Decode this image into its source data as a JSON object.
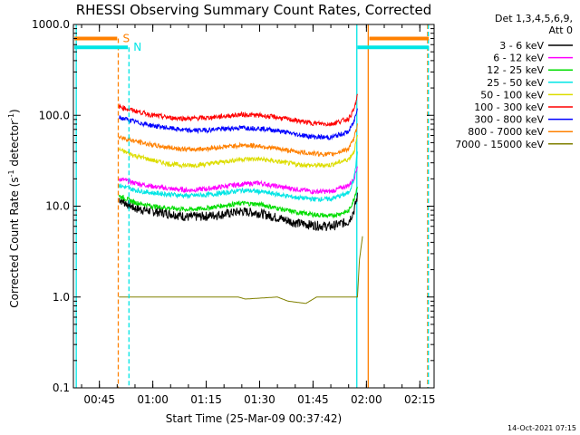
{
  "chart_data": {
    "type": "line",
    "title": "RHESSI Observing Summary Count Rates, Corrected",
    "ylabel": "Corrected Count Rate (s⁻¹ detector⁻¹)",
    "ylabel_main": "Corrected Count Rate (s",
    "ylabel_sup1": "-1",
    "ylabel_mid": " detector",
    "ylabel_sup2": "-1",
    "ylabel_end": ")",
    "xlabel": "Start Time (25-Mar-09 00:37:42)",
    "yscale": "log",
    "ylim": [
      0.1,
      1000.0
    ],
    "xlim_minutes": [
      37.7,
      139.0
    ],
    "yticks": [
      {
        "value": 0.1,
        "label": "0.1"
      },
      {
        "value": 1.0,
        "label": "1.0"
      },
      {
        "value": 10.0,
        "label": "10.0"
      },
      {
        "value": 100.0,
        "label": "100.0"
      },
      {
        "value": 1000.0,
        "label": "1000.0"
      }
    ],
    "xticks": [
      {
        "value": 45,
        "label": "00:45"
      },
      {
        "value": 60,
        "label": "01:00"
      },
      {
        "value": 75,
        "label": "01:15"
      },
      {
        "value": 90,
        "label": "01:30"
      },
      {
        "value": 105,
        "label": "01:45"
      },
      {
        "value": 120,
        "label": "02:00"
      },
      {
        "value": 135,
        "label": "02:15"
      }
    ],
    "legend_header": [
      "Det 1,3,4,5,6,9,",
      "Att 0"
    ],
    "legend_placement": "right",
    "series": [
      {
        "name": "3 - 6 keV",
        "color": "#000000",
        "x": [
          50.5,
          55,
          60,
          65,
          70,
          75,
          80,
          85,
          90,
          95,
          100,
          105,
          110,
          115,
          116.5,
          117.5
        ],
        "y": [
          12,
          9.5,
          8.8,
          8.3,
          7.6,
          7.8,
          8.2,
          8.8,
          8.4,
          7.5,
          6.6,
          6.2,
          6.0,
          6.8,
          9,
          13
        ]
      },
      {
        "name": "6 - 12 keV",
        "color": "#ff00ff",
        "x": [
          50.5,
          55,
          60,
          65,
          70,
          75,
          80,
          85,
          90,
          95,
          100,
          105,
          110,
          115,
          116.5,
          117.5
        ],
        "y": [
          20,
          18,
          16.5,
          15.5,
          15,
          15.5,
          16.5,
          17.5,
          18,
          16.5,
          15.5,
          14.5,
          14.5,
          17,
          20,
          28
        ]
      },
      {
        "name": "12 - 25 keV",
        "color": "#00dd00",
        "x": [
          50.5,
          55,
          60,
          65,
          70,
          75,
          80,
          85,
          90,
          95,
          100,
          105,
          110,
          115,
          116.5,
          117.5
        ],
        "y": [
          13,
          11,
          10,
          9.5,
          9.2,
          9.5,
          10.2,
          10.8,
          10.5,
          9.5,
          8.6,
          8.1,
          7.8,
          8.8,
          12,
          17
        ]
      },
      {
        "name": "25 - 50 keV",
        "color": "#00e5e5",
        "x": [
          50.5,
          55,
          60,
          65,
          70,
          75,
          80,
          85,
          90,
          95,
          100,
          105,
          110,
          115,
          116.5,
          117.5
        ],
        "y": [
          17,
          15,
          14,
          13.5,
          13,
          13.3,
          14,
          15,
          14.5,
          13.5,
          12.5,
          12,
          12,
          14,
          20,
          40
        ]
      },
      {
        "name": "50 - 100 keV",
        "color": "#dddd00",
        "x": [
          50.5,
          55,
          60,
          65,
          70,
          75,
          80,
          85,
          90,
          95,
          100,
          105,
          110,
          115,
          116.5,
          117.5
        ],
        "y": [
          42,
          36,
          32,
          29,
          28,
          29,
          31,
          33,
          33,
          31,
          29,
          28,
          28.5,
          33,
          40,
          60
        ]
      },
      {
        "name": "100 - 300 keV",
        "color": "#ff0000",
        "x": [
          50.5,
          55,
          60,
          65,
          70,
          75,
          80,
          85,
          90,
          95,
          100,
          105,
          110,
          115,
          116.5,
          117.5
        ],
        "y": [
          125,
          112,
          100,
          94,
          92,
          94,
          98,
          102,
          100,
          95,
          88,
          82,
          80,
          92,
          115,
          165
        ]
      },
      {
        "name": "300 - 800 keV",
        "color": "#0000ff",
        "x": [
          50.5,
          55,
          60,
          65,
          70,
          75,
          80,
          85,
          90,
          95,
          100,
          105,
          110,
          115,
          116.5,
          117.5
        ],
        "y": [
          95,
          85,
          77,
          72,
          68,
          69,
          71,
          73,
          72,
          68,
          62,
          58,
          57,
          66,
          85,
          125
        ]
      },
      {
        "name": "800 - 7000 keV",
        "color": "#ff8000",
        "x": [
          50.5,
          55,
          60,
          65,
          70,
          75,
          80,
          85,
          90,
          95,
          100,
          105,
          110,
          115,
          116.5,
          117.5
        ],
        "y": [
          58,
          52,
          47,
          44,
          42,
          43,
          45,
          47,
          46,
          43,
          40,
          38,
          37,
          43,
          55,
          80
        ]
      },
      {
        "name": "7000 - 15000 keV",
        "color": "#808000",
        "x": [
          50.5,
          51,
          52,
          55,
          57,
          60,
          70,
          80,
          84,
          86,
          95,
          98,
          103,
          106,
          115,
          117.5,
          118,
          119
        ],
        "y": [
          1,
          1,
          1,
          1,
          1,
          1,
          1,
          1,
          1,
          0.95,
          1,
          0.9,
          0.85,
          1,
          1,
          1,
          2.5,
          5
        ]
      }
    ],
    "annotations": [
      {
        "label": "S",
        "color": "#ff8000",
        "x_bar": [
          38,
          50
        ],
        "y": 700,
        "line_x": 50.3
      },
      {
        "label": "N",
        "color": "#00e5e5",
        "x_bar": [
          38,
          53
        ],
        "y": 560,
        "line_x": 53.3
      }
    ],
    "event_lines": [
      {
        "x": 38.5,
        "color": "#00e5e5",
        "style": "solid"
      },
      {
        "x": 117.3,
        "color": "#00e5e5",
        "style": "solid"
      },
      {
        "x": 120.5,
        "color": "#ff8000",
        "style": "solid"
      },
      {
        "x": 137.2,
        "color": "#ff8000",
        "style": "dashed"
      },
      {
        "x": 137.4,
        "color": "#00e5e5",
        "style": "dashed"
      }
    ],
    "right_bars": [
      {
        "color": "#ff8000",
        "x": [
          120.8,
          137.5
        ],
        "y": 700
      },
      {
        "color": "#00e5e5",
        "x": [
          117.5,
          137.5
        ],
        "y": 560
      }
    ],
    "timestamp": "14-Oct-2021 07:15"
  }
}
